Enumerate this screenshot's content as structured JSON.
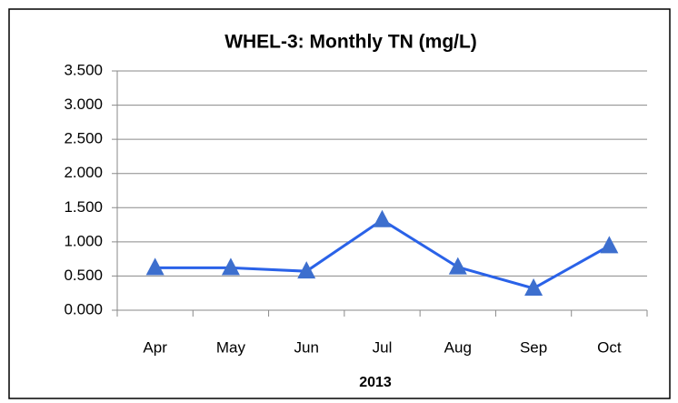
{
  "chart_data": {
    "type": "line",
    "title": "WHEL-3: Monthly TN (mg/L)",
    "x_label": "2013",
    "categories": [
      "Apr",
      "May",
      "Jun",
      "Jul",
      "Aug",
      "Sep",
      "Oct"
    ],
    "series": [
      {
        "name": "TN",
        "color": "#2a62e8",
        "marker_color": "#3d6fce",
        "values": [
          0.62,
          0.62,
          0.57,
          1.32,
          0.63,
          0.32,
          0.94
        ]
      }
    ],
    "ylim": [
      0,
      3.5
    ],
    "yticks": [
      {
        "value": 0,
        "label": "0.000"
      },
      {
        "value": 0.5,
        "label": "0.500"
      },
      {
        "value": 1,
        "label": "1.000"
      },
      {
        "value": 1.5,
        "label": "1.500"
      },
      {
        "value": 2,
        "label": "2.000"
      },
      {
        "value": 2.5,
        "label": "2.500"
      },
      {
        "value": 3,
        "label": "3.000"
      },
      {
        "value": 3.5,
        "label": "3.500"
      }
    ],
    "grid": true
  }
}
